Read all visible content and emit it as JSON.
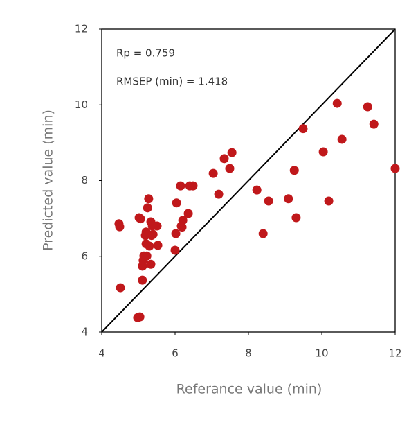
{
  "chart_data": {
    "type": "scatter",
    "annotations": [
      "Rp = 0.759",
      "RMSEP (min) = 1.418"
    ],
    "x_label": "Referance value (min)",
    "y_label": "Predicted value (min)",
    "xlim": [
      4,
      12
    ],
    "ylim": [
      4,
      12
    ],
    "xticks": [
      4,
      6,
      8,
      10,
      12
    ],
    "yticks": [
      4,
      6,
      8,
      10,
      12
    ],
    "identity_line": true,
    "color": "#c0181b",
    "x": [
      4.49,
      4.47,
      4.51,
      4.98,
      5.04,
      5.02,
      5.06,
      5.28,
      5.25,
      5.11,
      5.13,
      5.15,
      5.11,
      5.23,
      5.21,
      5.19,
      5.3,
      5.34,
      5.34,
      5.38,
      5.4,
      5.51,
      5.53,
      5.36,
      5.21,
      6.0,
      6.02,
      6.04,
      6.15,
      6.21,
      6.17,
      6.19,
      6.36,
      6.4,
      6.49,
      7.04,
      7.19,
      7.34,
      7.49,
      7.55,
      8.23,
      8.4,
      8.55,
      9.09,
      9.25,
      9.3,
      9.49,
      10.04,
      10.19,
      10.42,
      10.55,
      11.25,
      11.42,
      12.0
    ],
    "values": [
      6.78,
      6.86,
      5.17,
      4.38,
      4.4,
      7.02,
      6.99,
      7.52,
      7.28,
      5.74,
      5.89,
      6.01,
      5.37,
      6.01,
      6.64,
      6.55,
      6.27,
      5.79,
      6.91,
      6.8,
      6.58,
      6.8,
      6.29,
      6.55,
      6.33,
      6.16,
      6.6,
      7.41,
      7.86,
      6.95,
      6.8,
      6.77,
      7.13,
      7.86,
      7.86,
      8.19,
      7.64,
      8.58,
      8.32,
      8.74,
      7.75,
      6.6,
      7.46,
      7.52,
      8.27,
      7.02,
      9.37,
      8.76,
      7.46,
      10.04,
      9.09,
      9.95,
      9.49,
      8.32
    ]
  }
}
